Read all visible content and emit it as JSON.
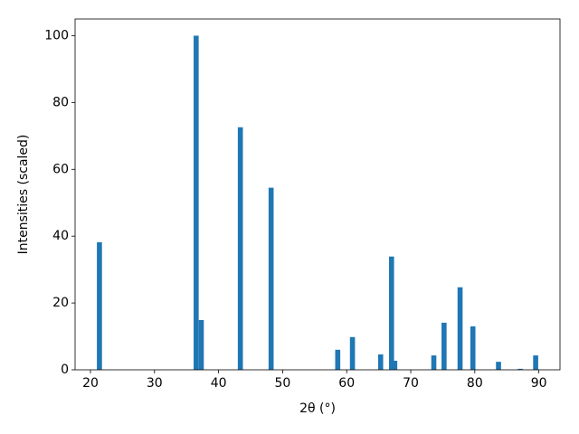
{
  "chart_data": {
    "type": "bar",
    "x_label": "2θ (°)",
    "y_label": "Intensities (scaled)",
    "x": [
      21.4,
      36.5,
      37.3,
      43.4,
      48.2,
      58.6,
      60.9,
      65.3,
      67.0,
      67.5,
      73.6,
      75.2,
      77.7,
      79.7,
      83.7,
      87.1,
      89.5
    ],
    "values": [
      38.2,
      100,
      14.9,
      72.6,
      54.5,
      6.0,
      9.8,
      4.6,
      33.9,
      2.7,
      4.3,
      14.1,
      24.7,
      13.0,
      2.4,
      0.3,
      4.3
    ],
    "color": "#1f77b4",
    "xlim": [
      17.6,
      93.3
    ],
    "ylim": [
      0,
      105
    ],
    "xticks": [
      20,
      30,
      40,
      50,
      60,
      70,
      80,
      90
    ],
    "yticks": [
      0,
      20,
      40,
      60,
      80,
      100
    ],
    "grid": false
  }
}
